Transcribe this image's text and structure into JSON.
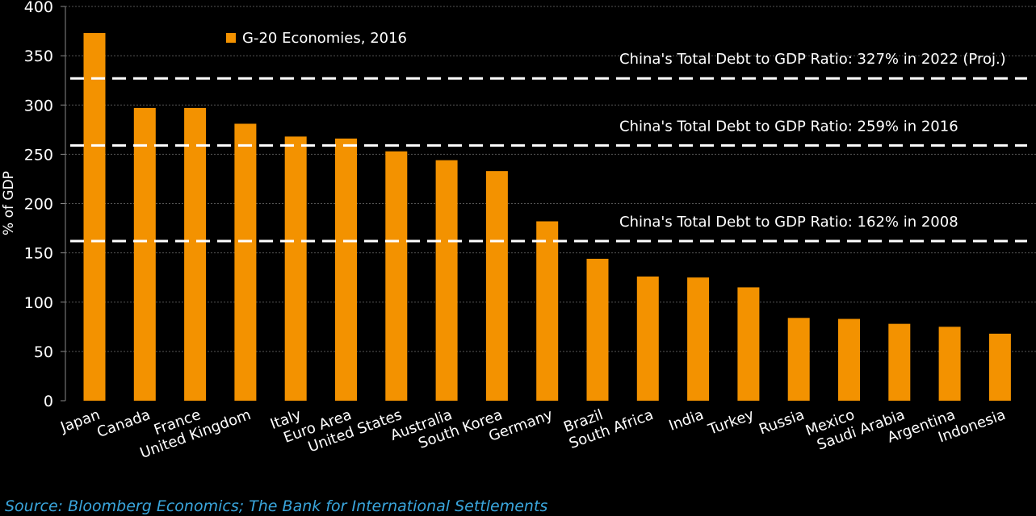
{
  "chart_data": {
    "type": "bar",
    "title": "",
    "xlabel": "",
    "ylabel": "% of GDP",
    "ylim": [
      0,
      400
    ],
    "yticks": [
      0,
      50,
      100,
      150,
      200,
      250,
      300,
      350,
      400
    ],
    "grid": true,
    "legend_placement": "top-center",
    "categories": [
      "Japan",
      "Canada",
      "France",
      "United Kingdom",
      "Italy",
      "Euro Area",
      "United States",
      "Australia",
      "South Korea",
      "Germany",
      "Brazil",
      "South Africa",
      "India",
      "Turkey",
      "Russia",
      "Mexico",
      "Saudi Arabia",
      "Argentina",
      "Indonesia"
    ],
    "series": [
      {
        "name": "G-20 Economies, 2016",
        "color": "#f39200",
        "values": [
          373,
          297,
          297,
          281,
          268,
          266,
          253,
          244,
          233,
          182,
          144,
          126,
          125,
          115,
          84,
          83,
          78,
          75,
          68
        ]
      }
    ],
    "reference_lines": [
      {
        "value": 327,
        "label": "China's Total Debt to GDP Ratio: 327% in 2022 (Proj.)"
      },
      {
        "value": 259,
        "label": "China's Total Debt to GDP Ratio: 259% in 2016"
      },
      {
        "value": 162,
        "label": "China's Total Debt to GDP Ratio: 162% in 2008"
      }
    ]
  },
  "source": "Source: Bloomberg Economics; The Bank for International Settlements",
  "colors": {
    "background": "#000000",
    "bar": "#f39200",
    "source_text": "#3aa6dd",
    "reference_line": "#ffffff"
  }
}
